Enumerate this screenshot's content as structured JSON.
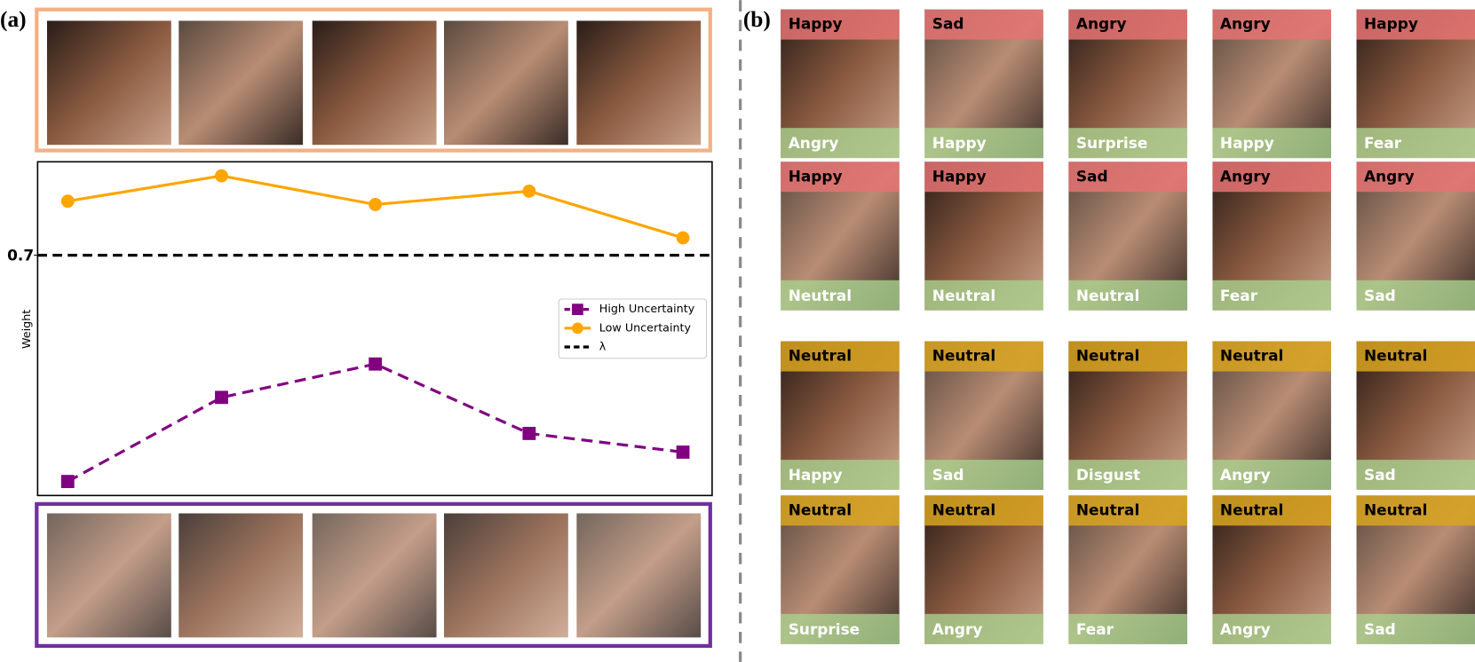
{
  "labels": {
    "a": "(a)",
    "b": "(b)"
  },
  "chart_data": {
    "type": "line",
    "ylabel": "Weight",
    "categories": [
      null,
      null,
      null,
      null,
      null
    ],
    "series": [
      {
        "name": "High Uncertainty",
        "color": "#800080",
        "marker": "square",
        "dash": true,
        "values": [
          0.361,
          0.487,
          0.537,
          0.433,
          0.405
        ]
      },
      {
        "name": "Low Uncertainty",
        "color": "#ffa500",
        "marker": "circle",
        "dash": false,
        "values": [
          0.781,
          0.819,
          0.776,
          0.796,
          0.726
        ]
      }
    ],
    "threshold": {
      "name": "λ",
      "value": 0.7,
      "color": "#000000"
    },
    "ylim": [
      0.34,
      0.84
    ],
    "yticks": [
      0.7
    ],
    "legend": "right"
  },
  "grid": {
    "rows": [
      {
        "top_color": "#e57373",
        "cells": [
          {
            "top": "Happy",
            "bottom": "Angry"
          },
          {
            "top": "Sad",
            "bottom": "Happy"
          },
          {
            "top": "Angry",
            "bottom": "Surprise"
          },
          {
            "top": "Angry",
            "bottom": "Happy"
          },
          {
            "top": "Happy",
            "bottom": "Fear"
          }
        ]
      },
      {
        "top_color": "#e57373",
        "cells": [
          {
            "top": "Happy",
            "bottom": "Neutral"
          },
          {
            "top": "Happy",
            "bottom": "Neutral"
          },
          {
            "top": "Sad",
            "bottom": "Neutral"
          },
          {
            "top": "Angry",
            "bottom": "Fear"
          },
          {
            "top": "Angry",
            "bottom": "Sad"
          }
        ]
      },
      {
        "top_color": "#d9a520",
        "cells": [
          {
            "top": "Neutral",
            "bottom": "Happy"
          },
          {
            "top": "Neutral",
            "bottom": "Sad"
          },
          {
            "top": "Neutral",
            "bottom": "Disgust"
          },
          {
            "top": "Neutral",
            "bottom": "Angry"
          },
          {
            "top": "Neutral",
            "bottom": "Sad"
          }
        ]
      },
      {
        "top_color": "#d9a520",
        "cells": [
          {
            "top": "Neutral",
            "bottom": "Surprise"
          },
          {
            "top": "Neutral",
            "bottom": "Angry"
          },
          {
            "top": "Neutral",
            "bottom": "Fear"
          },
          {
            "top": "Neutral",
            "bottom": "Angry"
          },
          {
            "top": "Neutral",
            "bottom": "Sad"
          }
        ]
      }
    ]
  }
}
